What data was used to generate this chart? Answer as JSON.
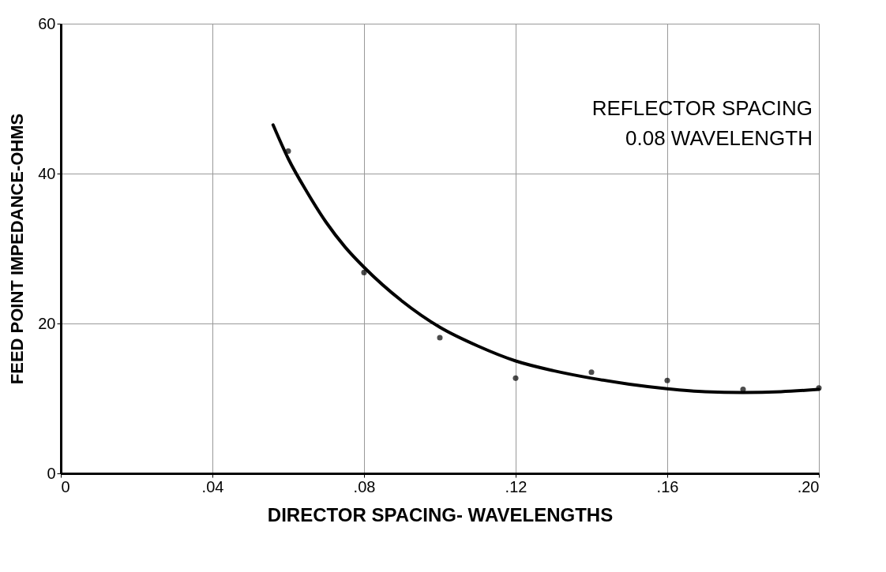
{
  "chart_data": {
    "type": "scatter",
    "xlabel": "DIRECTOR SPACING- WAVELENGTHS",
    "ylabel": "FEED POINT IMPEDANCE-OHMS",
    "annotations": [
      "REFLECTOR SPACING 0.08 WAVELENGTH"
    ],
    "xlim": [
      0,
      0.2
    ],
    "ylim": [
      0,
      60
    ],
    "xticks": [
      0,
      {
        "value": 0.04,
        "label": ".04"
      },
      {
        "value": 0.08,
        "label": ".08"
      },
      {
        "value": 0.12,
        "label": ".12"
      },
      {
        "value": 0.16,
        "label": ".16"
      },
      {
        "value": 0.2,
        "label": ".20"
      }
    ],
    "yticks": [
      0,
      20,
      40,
      60
    ],
    "grid": true,
    "series": [
      {
        "color": "#000000",
        "marker": "circle",
        "x": [
          0.06,
          0.08,
          0.1,
          0.12,
          0.14,
          0.16,
          0.18,
          0.2
        ],
        "values": [
          43,
          26.8,
          18.1,
          12.7,
          13.5,
          12.4,
          11.2,
          11.4
        ]
      },
      {
        "type": "line",
        "color": "#000000",
        "line_style": "solid",
        "x": [
          0.056,
          0.06,
          0.065,
          0.07,
          0.075,
          0.08,
          0.09,
          0.1,
          0.11,
          0.12,
          0.13,
          0.14,
          0.15,
          0.16,
          0.17,
          0.18,
          0.19,
          0.2
        ],
        "values": [
          46.5,
          42,
          37.5,
          33.5,
          30.2,
          27.5,
          23,
          19.5,
          17,
          15,
          13.7,
          12.7,
          11.9,
          11.3,
          10.9,
          10.8,
          10.9,
          11.2
        ]
      }
    ]
  }
}
